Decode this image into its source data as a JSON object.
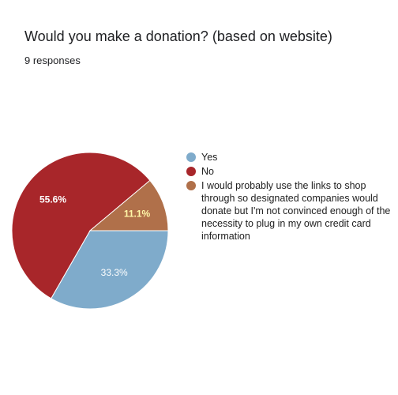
{
  "form": {
    "question": "Would you make a donation? (based on website)",
    "responses_text": "9 responses"
  },
  "chart_data": {
    "type": "pie",
    "title": "Would you make a donation? (based on website)",
    "slices": [
      {
        "label": "Yes",
        "value": 33.3,
        "display": "33.3%",
        "color": "#7fabcb",
        "label_color": "#ffffff"
      },
      {
        "label": "No",
        "value": 55.6,
        "display": "55.6%",
        "color": "#a8262a",
        "label_color": "#ffffff"
      },
      {
        "label": "I would probably use the links to shop through so designated companies would donate but I'm not convinced enough of the necessity to plug in my own credit card information",
        "value": 11.1,
        "display": "11.1%",
        "color": "#b0704a",
        "label_color": "#fff7a8"
      }
    ],
    "legend_position": "right",
    "start_angle": "3 o'clock, clockwise"
  }
}
